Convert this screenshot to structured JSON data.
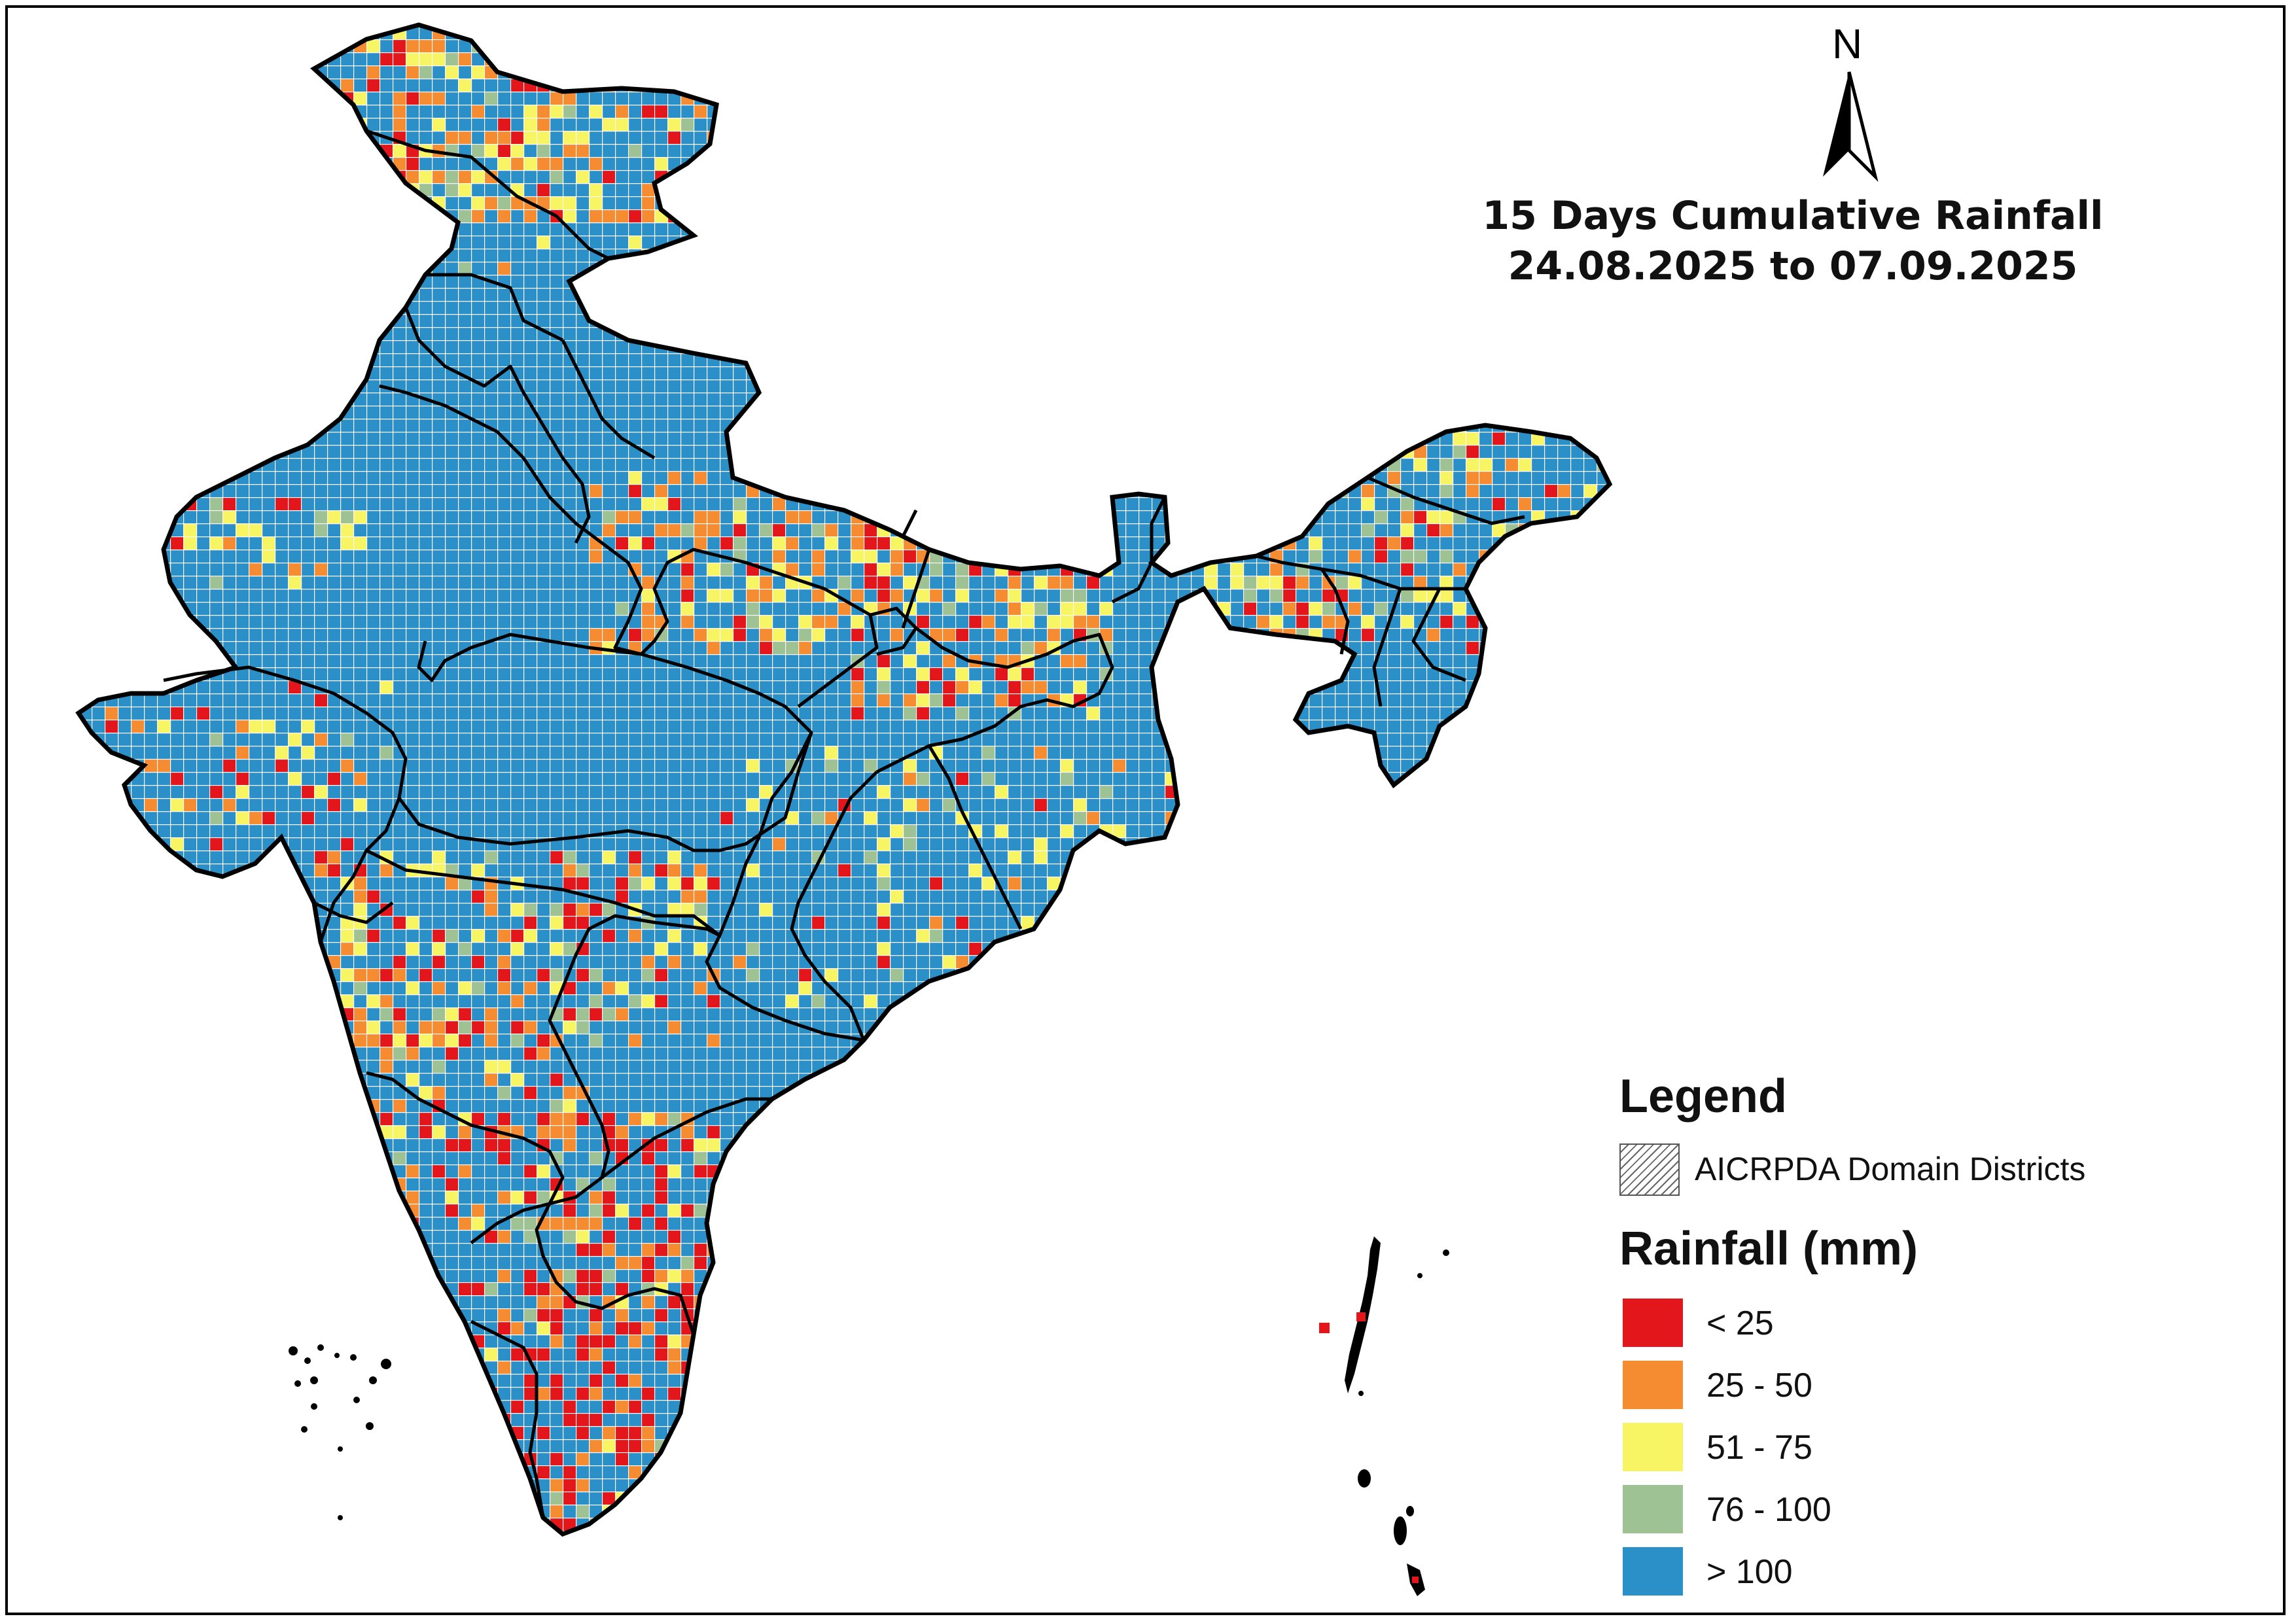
{
  "title": {
    "line1": "15 Days Cumulative Rainfall",
    "line2": "24.08.2025 to 07.09.2025"
  },
  "north_arrow": {
    "label": "N",
    "icon": "north-arrow-icon"
  },
  "legend": {
    "heading": "Legend",
    "hatch_label": "AICRPDA Domain Districts",
    "rainfall_heading": "Rainfall (mm)",
    "classes": [
      {
        "label": "< 25",
        "color": "#e3171b"
      },
      {
        "label": "25 - 50",
        "color": "#f68c32"
      },
      {
        "label": "51 - 75",
        "color": "#f7f564"
      },
      {
        "label": "76 - 100",
        "color": "#9fc295"
      },
      {
        "label": "> 100",
        "color": "#2b90c8"
      }
    ]
  },
  "map": {
    "region": "India",
    "boundary_color": "#000000",
    "grid_line_color": "#ffffff"
  }
}
